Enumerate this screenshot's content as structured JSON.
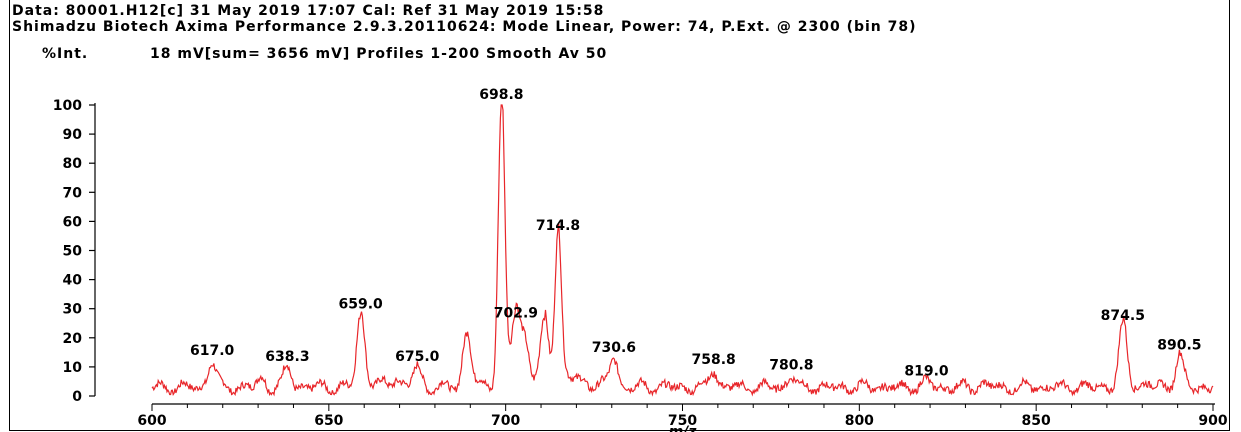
{
  "header": {
    "line1": "Data: 80001.H12[c] 31 May 2019 17:07 Cal: Ref 31 May 2019 15:58",
    "line2": "Shimadzu Biotech Axima Performance 2.9.3.20110624: Mode Linear, Power: 74, P.Ext. @ 2300 (bin 78)",
    "y_unit": "%Int.",
    "profile": "18 mV[sum= 3656 mV] Profiles 1-200 Smooth Av 50"
  },
  "chart_data": {
    "type": "line",
    "title": "",
    "xlabel": "m/z",
    "ylabel": "%Int.",
    "xlim": [
      600,
      900
    ],
    "ylim": [
      0,
      100
    ],
    "x_ticks": [
      600,
      650,
      700,
      750,
      800,
      850,
      900
    ],
    "y_ticks": [
      0,
      10,
      20,
      30,
      40,
      50,
      60,
      70,
      80,
      90,
      100
    ],
    "line_color": "#e8262a",
    "grid": false,
    "peaks": [
      {
        "label": "617.0",
        "mz": 617.0,
        "intensity": 12
      },
      {
        "label": "638.3",
        "mz": 638.3,
        "intensity": 10
      },
      {
        "label": "659.0",
        "mz": 659.0,
        "intensity": 28
      },
      {
        "label": "675.0",
        "mz": 675.0,
        "intensity": 10
      },
      {
        "label": "698.8",
        "mz": 698.8,
        "intensity": 100
      },
      {
        "label": "702.9",
        "mz": 702.9,
        "intensity": 25
      },
      {
        "label": "714.8",
        "mz": 714.8,
        "intensity": 55
      },
      {
        "label": "730.6",
        "mz": 730.6,
        "intensity": 13
      },
      {
        "label": "758.8",
        "mz": 758.8,
        "intensity": 9
      },
      {
        "label": "780.8",
        "mz": 780.8,
        "intensity": 7
      },
      {
        "label": "819.0",
        "mz": 819.0,
        "intensity": 5
      },
      {
        "label": "874.5",
        "mz": 874.5,
        "intensity": 24
      },
      {
        "label": "890.5",
        "mz": 890.5,
        "intensity": 14
      }
    ],
    "unlabeled_peaks": [
      {
        "mz": 689.0,
        "intensity": 22
      },
      {
        "mz": 705.5,
        "intensity": 16
      },
      {
        "mz": 711.0,
        "intensity": 24
      },
      {
        "mz": 631.0,
        "intensity": 6
      },
      {
        "mz": 669.0,
        "intensity": 6
      },
      {
        "mz": 835.0,
        "intensity": 4
      }
    ]
  }
}
